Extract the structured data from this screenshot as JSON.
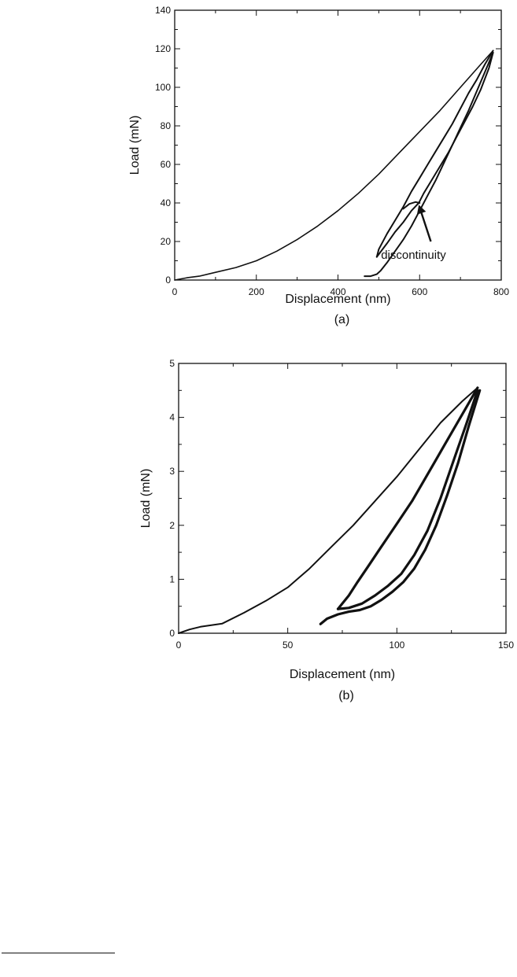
{
  "figure": {
    "panels": [
      {
        "label": "(a)"
      },
      {
        "label": "(b)"
      }
    ]
  },
  "chart_data": [
    {
      "type": "line",
      "panel_label": "(a)",
      "xlabel": "Displacement (nm)",
      "ylabel": "Load (mN)",
      "xlim": [
        0,
        800
      ],
      "ylim": [
        0,
        140
      ],
      "xticks": [
        0,
        200,
        400,
        600,
        800
      ],
      "yticks": [
        0,
        20,
        40,
        60,
        80,
        100,
        120,
        140
      ],
      "grid": false,
      "annotations": [
        {
          "text": "discontinuity",
          "x": 585,
          "y": 11,
          "arrow_to_x": 598,
          "arrow_to_y": 39
        }
      ],
      "series": [
        {
          "x": [
            0,
            30,
            60,
            100,
            150,
            200,
            250,
            300,
            350,
            400,
            450,
            500,
            550,
            600,
            650,
            700,
            750,
            780
          ],
          "y": [
            0,
            1.2,
            2,
            4,
            6.5,
            10,
            15,
            21,
            28,
            36,
            45,
            55,
            66,
            77,
            88,
            100,
            112,
            119
          ]
        },
        {
          "x": [
            780,
            760,
            740,
            720,
            700,
            680,
            660,
            640,
            620,
            600,
            580,
            560,
            540,
            520,
            500,
            495
          ],
          "y": [
            119,
            112,
            104,
            97,
            89,
            81,
            74,
            67,
            60,
            53,
            46,
            38,
            31,
            24,
            16,
            12
          ]
        },
        {
          "x": [
            495,
            520,
            540,
            560,
            580,
            598,
            610,
            630,
            650,
            670,
            690,
            710,
            730,
            750,
            770,
            780
          ],
          "y": [
            12,
            19,
            25,
            30,
            36,
            40,
            45,
            52,
            59,
            66,
            74,
            82,
            90,
            99,
            110,
            118
          ]
        },
        {
          "x": [
            780,
            760,
            740,
            720,
            700,
            680,
            660,
            640,
            620,
            600,
            580,
            560,
            540,
            520,
            505,
            495,
            480,
            465
          ],
          "y": [
            118,
            108,
            98,
            88,
            79,
            70,
            61,
            52,
            44,
            36,
            28,
            21,
            15,
            9,
            5,
            3,
            2,
            2
          ]
        },
        {
          "x": [
            560,
            575,
            590,
            600
          ],
          "y": [
            37,
            39.5,
            40.5,
            40
          ]
        }
      ]
    },
    {
      "type": "line",
      "panel_label": "(b)",
      "xlabel": "Displacement (nm)",
      "ylabel": "Load (mN)",
      "xlim": [
        0,
        150
      ],
      "ylim": [
        0,
        5
      ],
      "xticks": [
        0,
        50,
        100,
        150
      ],
      "yticks": [
        0,
        1,
        2,
        3,
        4,
        5
      ],
      "grid": false,
      "series": [
        {
          "x": [
            0,
            5,
            10,
            20,
            30,
            40,
            50,
            60,
            70,
            80,
            90,
            100,
            110,
            120,
            130,
            137
          ],
          "y": [
            0,
            0.07,
            0.12,
            0.18,
            0.38,
            0.6,
            0.85,
            1.2,
            1.6,
            2.0,
            2.45,
            2.9,
            3.4,
            3.9,
            4.3,
            4.55
          ]
        },
        {
          "x": [
            137,
            132,
            127,
            122,
            117,
            112,
            107,
            102,
            97,
            92,
            87,
            82,
            78,
            75,
            73
          ],
          "y": [
            4.55,
            4.2,
            3.85,
            3.5,
            3.15,
            2.8,
            2.45,
            2.15,
            1.85,
            1.55,
            1.25,
            0.95,
            0.7,
            0.55,
            0.45
          ]
        },
        {
          "x": [
            73,
            78,
            84,
            90,
            96,
            102,
            108,
            114,
            120,
            126,
            132,
            137
          ],
          "y": [
            0.45,
            0.47,
            0.55,
            0.7,
            0.88,
            1.1,
            1.45,
            1.9,
            2.5,
            3.2,
            3.9,
            4.5
          ]
        },
        {
          "x": [
            138,
            133,
            128,
            123,
            118,
            113,
            108,
            103,
            98,
            93,
            88,
            83,
            78,
            73,
            68,
            65
          ],
          "y": [
            4.5,
            3.85,
            3.15,
            2.55,
            2.0,
            1.55,
            1.2,
            0.95,
            0.77,
            0.62,
            0.5,
            0.43,
            0.4,
            0.35,
            0.27,
            0.17
          ]
        }
      ]
    }
  ]
}
